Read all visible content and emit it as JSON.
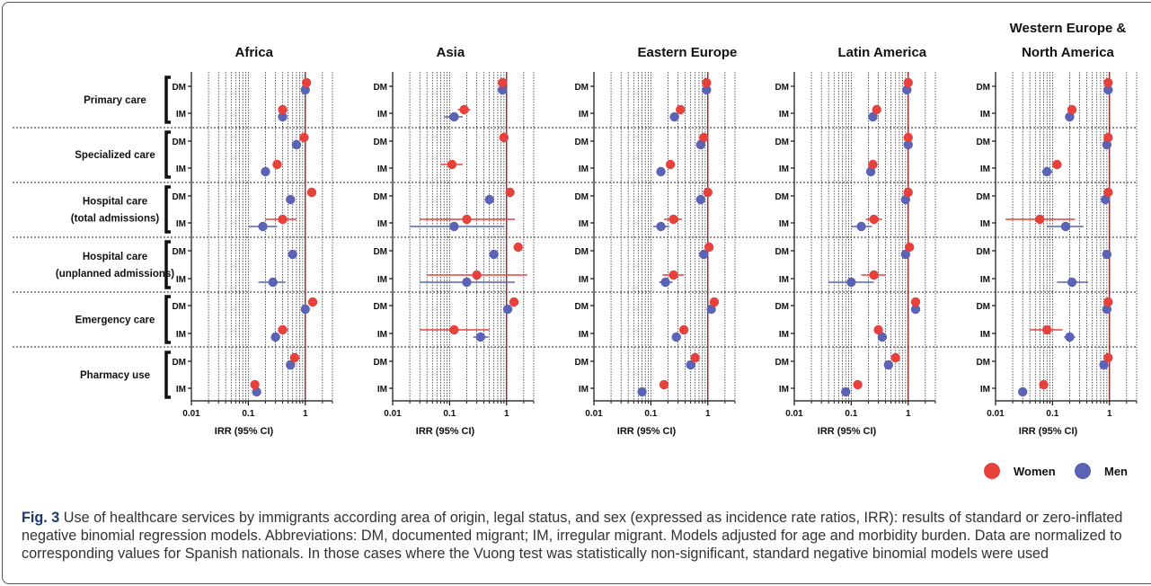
{
  "chart_data": {
    "type": "forest",
    "xlabel": "IRR (95% CI)",
    "xscale": "log",
    "xlim": [
      0.01,
      3
    ],
    "xticks": [
      "0.01",
      "0.1",
      "1"
    ],
    "reference_line": 1,
    "grid": "vertical-dotted",
    "legend": {
      "position": "bottom-right",
      "entries": [
        {
          "name": "Women",
          "color": "#e8413c"
        },
        {
          "name": "Men",
          "color": "#5a63b5"
        }
      ]
    },
    "panels": [
      "Africa",
      "Asia",
      "Eastern Europe",
      "Latin America",
      "Western Europe & North America"
    ],
    "groups": [
      {
        "label": [
          "Primary care"
        ],
        "rows": [
          "DM",
          "IM"
        ]
      },
      {
        "label": [
          "Specialized care"
        ],
        "rows": [
          "DM",
          "IM"
        ]
      },
      {
        "label": [
          "Hospital care",
          "(total admissions)"
        ],
        "rows": [
          "DM",
          "IM"
        ]
      },
      {
        "label": [
          "Hospital care",
          "(unplanned admissions)"
        ],
        "rows": [
          "DM",
          "IM"
        ]
      },
      {
        "label": [
          "Emergency care"
        ],
        "rows": [
          "DM",
          "IM"
        ]
      },
      {
        "label": [
          "Pharmacy use"
        ],
        "rows": [
          "DM",
          "IM"
        ]
      }
    ],
    "series": [
      {
        "name": "Women",
        "color": "#e8413c",
        "values": [
          [
            [
              1.05,
              1.0,
              1.1
            ],
            [
              0.4,
              0.37,
              0.45
            ],
            [
              0.95,
              0.9,
              1.0
            ],
            [
              0.32,
              0.29,
              0.36
            ],
            [
              1.3,
              1.25,
              1.35
            ],
            [
              0.4,
              0.2,
              0.7
            ],
            [
              null,
              null,
              null
            ],
            [
              null,
              null,
              null
            ],
            [
              1.35,
              1.3,
              1.45
            ],
            [
              0.4,
              0.33,
              0.5
            ],
            [
              0.65,
              0.6,
              0.7
            ],
            [
              0.13,
              0.12,
              0.14
            ]
          ],
          [
            [
              0.85,
              0.8,
              0.9
            ],
            [
              0.18,
              0.14,
              0.23
            ],
            [
              0.9,
              0.85,
              0.95
            ],
            [
              0.11,
              0.07,
              0.17
            ],
            [
              1.15,
              1.1,
              1.2
            ],
            [
              0.2,
              0.03,
              1.4
            ],
            [
              1.6,
              1.5,
              1.7
            ],
            [
              0.3,
              0.04,
              2.3
            ],
            [
              1.35,
              1.3,
              1.4
            ],
            [
              0.12,
              0.03,
              0.5
            ],
            [
              null,
              null,
              null
            ],
            [
              null,
              null,
              null
            ]
          ],
          [
            [
              0.95,
              0.9,
              1.0
            ],
            [
              0.33,
              0.29,
              0.37
            ],
            [
              0.85,
              0.8,
              0.9
            ],
            [
              0.22,
              0.2,
              0.25
            ],
            [
              1.0,
              0.95,
              1.05
            ],
            [
              0.25,
              0.17,
              0.35
            ],
            [
              1.05,
              1.0,
              1.1
            ],
            [
              0.25,
              0.16,
              0.38
            ],
            [
              1.3,
              1.25,
              1.35
            ],
            [
              0.38,
              0.34,
              0.42
            ],
            [
              0.6,
              0.55,
              0.65
            ],
            [
              0.17,
              0.16,
              0.18
            ]
          ],
          [
            [
              1.0,
              0.95,
              1.05
            ],
            [
              0.28,
              0.25,
              0.31
            ],
            [
              1.0,
              0.95,
              1.05
            ],
            [
              0.24,
              0.21,
              0.27
            ],
            [
              1.0,
              0.95,
              1.05
            ],
            [
              0.25,
              0.18,
              0.35
            ],
            [
              1.05,
              1.0,
              1.1
            ],
            [
              0.25,
              0.15,
              0.4
            ],
            [
              1.35,
              1.3,
              1.4
            ],
            [
              0.3,
              0.27,
              0.33
            ],
            [
              0.6,
              0.56,
              0.64
            ],
            [
              0.13,
              0.12,
              0.14
            ]
          ],
          [
            [
              0.95,
              0.9,
              1.0
            ],
            [
              0.22,
              0.2,
              0.25
            ],
            [
              0.95,
              0.9,
              1.0
            ],
            [
              0.12,
              0.1,
              0.14
            ],
            [
              0.95,
              0.9,
              1.0
            ],
            [
              0.06,
              0.015,
              0.25
            ],
            [
              null,
              null,
              null
            ],
            [
              null,
              null,
              null
            ],
            [
              0.95,
              0.9,
              1.0
            ],
            [
              0.08,
              0.04,
              0.15
            ],
            [
              0.95,
              0.9,
              1.0
            ],
            [
              0.07,
              0.065,
              0.075
            ]
          ]
        ]
      },
      {
        "name": "Men",
        "color": "#5a63b5",
        "values": [
          [
            [
              1.0,
              0.95,
              1.05
            ],
            [
              0.4,
              0.37,
              0.43
            ],
            [
              0.7,
              0.66,
              0.75
            ],
            [
              0.2,
              0.18,
              0.22
            ],
            [
              0.55,
              0.52,
              0.58
            ],
            [
              0.18,
              0.1,
              0.32
            ],
            [
              0.6,
              0.57,
              0.63
            ],
            [
              0.27,
              0.15,
              0.45
            ],
            [
              1.0,
              0.95,
              1.05
            ],
            [
              0.3,
              0.27,
              0.34
            ],
            [
              0.55,
              0.52,
              0.58
            ],
            [
              0.14,
              0.13,
              0.15
            ]
          ],
          [
            [
              0.85,
              0.8,
              0.9
            ],
            [
              0.12,
              0.08,
              0.17
            ],
            [
              null,
              null,
              null
            ],
            [
              null,
              null,
              null
            ],
            [
              0.5,
              0.45,
              0.56
            ],
            [
              0.12,
              0.02,
              0.9
            ],
            [
              0.6,
              0.52,
              0.7
            ],
            [
              0.2,
              0.03,
              1.4
            ],
            [
              1.05,
              1.0,
              1.1
            ],
            [
              0.35,
              0.26,
              0.48
            ],
            [
              null,
              null,
              null
            ],
            [
              null,
              null,
              null
            ]
          ],
          [
            [
              0.95,
              0.9,
              1.0
            ],
            [
              0.26,
              0.24,
              0.28
            ],
            [
              0.75,
              0.7,
              0.8
            ],
            [
              0.15,
              0.14,
              0.16
            ],
            [
              0.75,
              0.7,
              0.8
            ],
            [
              0.15,
              0.11,
              0.21
            ],
            [
              0.85,
              0.8,
              0.9
            ],
            [
              0.18,
              0.14,
              0.24
            ],
            [
              1.15,
              1.1,
              1.2
            ],
            [
              0.28,
              0.26,
              0.3
            ],
            [
              0.5,
              0.47,
              0.53
            ],
            [
              0.07,
              0.065,
              0.075
            ]
          ],
          [
            [
              0.95,
              0.9,
              1.0
            ],
            [
              0.24,
              0.22,
              0.26
            ],
            [
              1.0,
              0.95,
              1.05
            ],
            [
              0.22,
              0.2,
              0.24
            ],
            [
              0.9,
              0.85,
              0.95
            ],
            [
              0.15,
              0.1,
              0.23
            ],
            [
              0.9,
              0.85,
              0.95
            ],
            [
              0.1,
              0.04,
              0.25
            ],
            [
              1.35,
              1.3,
              1.4
            ],
            [
              0.35,
              0.32,
              0.38
            ],
            [
              0.45,
              0.42,
              0.48
            ],
            [
              0.08,
              0.075,
              0.085
            ]
          ],
          [
            [
              0.95,
              0.9,
              1.0
            ],
            [
              0.2,
              0.18,
              0.22
            ],
            [
              0.9,
              0.85,
              0.95
            ],
            [
              0.08,
              0.065,
              0.1
            ],
            [
              0.85,
              0.8,
              0.9
            ],
            [
              0.17,
              0.08,
              0.35
            ],
            [
              0.9,
              0.85,
              0.95
            ],
            [
              0.22,
              0.12,
              0.42
            ],
            [
              0.9,
              0.85,
              0.95
            ],
            [
              0.2,
              0.16,
              0.25
            ],
            [
              0.8,
              0.75,
              0.85
            ],
            [
              0.03,
              0.028,
              0.032
            ]
          ]
        ]
      }
    ]
  },
  "caption": {
    "fig_label": "Fig. 3",
    "text": " Use of healthcare services by immigrants according area of origin, legal status, and sex (expressed as incidence rate ratios, IRR): results of standard or zero-inflated negative binomial regression models. Abbreviations: DM, documented migrant; IM, irregular migrant. Models adjusted for age and morbidity burden. Data are normalized to corresponding values for Spanish nationals. In those cases where the Vuong test was statistically non-significant, standard negative binomial models were used"
  }
}
